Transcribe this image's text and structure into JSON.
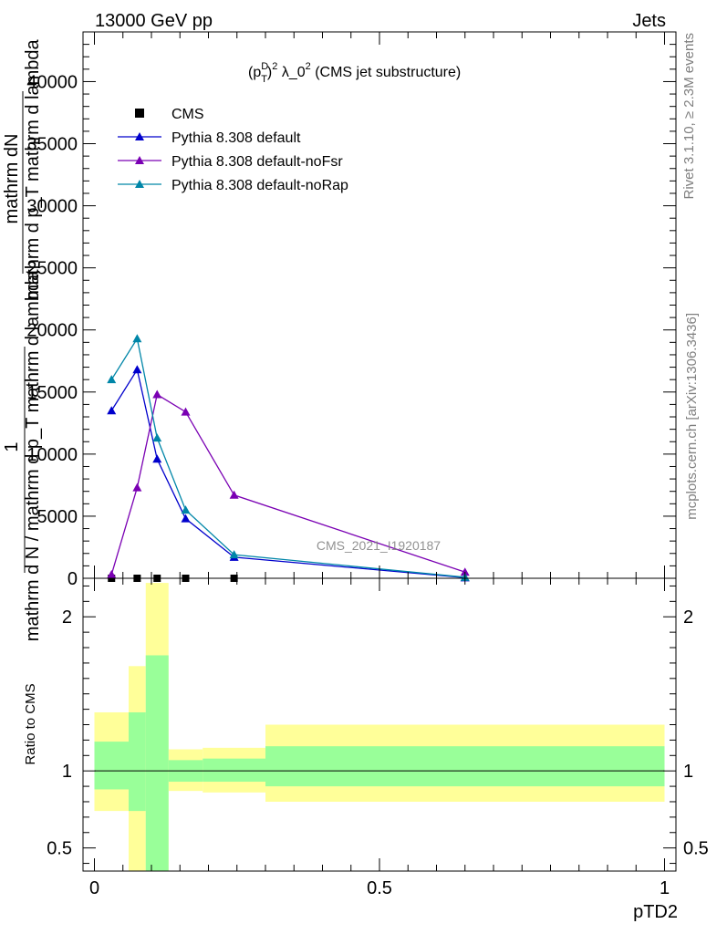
{
  "header": {
    "left": "13000 GeV pp",
    "right": "Jets"
  },
  "side": {
    "rivet": "Rivet 3.1.10, ≥ 2.3M events",
    "mcplots": "mcplots.cern.ch [arXiv:1306.3436]"
  },
  "main_plot": {
    "title_prefix": "(p",
    "title_sup_D": "D",
    "title_sub_T": "T",
    "title_sup_2": "2",
    "title_mid": " λ_0",
    "title_sup_2b": "2",
    "title_suffix": " (CMS jet substructure)",
    "watermark": "CMS_2021_I1920187",
    "ylabel_one": "1",
    "ylabel_num": "mathrm dN",
    "ylabel_num2": "mathrm d p_T mathrm d lambda",
    "ylabel_den": "mathrm d N / mathrm d p_T mathrm d lambda"
  },
  "legend": [
    {
      "label": "CMS",
      "color": "#000000",
      "marker": "square"
    },
    {
      "label": "Pythia 8.308 default",
      "color": "#0000cc",
      "marker": "triangle"
    },
    {
      "label": "Pythia 8.308 default-noFsr",
      "color": "#7a00b3",
      "marker": "triangle"
    },
    {
      "label": "Pythia 8.308 default-noRap",
      "color": "#0086a8",
      "marker": "triangle"
    }
  ],
  "ratio_plot": {
    "ylabel": "Ratio to CMS"
  },
  "xaxis": {
    "label": "pTD2"
  },
  "chart_data": [
    {
      "type": "line",
      "xlim": [
        -0.02,
        1.02
      ],
      "ylim": [
        0,
        44000
      ],
      "yticks": [
        0,
        5000,
        10000,
        15000,
        20000,
        25000,
        30000,
        35000,
        40000
      ],
      "ytick_labels": [
        "0",
        "5000",
        "10000",
        "15000",
        "20000",
        "25000",
        "30000",
        "35000",
        "40000"
      ],
      "series": [
        {
          "name": "CMS",
          "color": "#000000",
          "marker": "square",
          "x": [
            0.03,
            0.075,
            0.11,
            0.16,
            0.245
          ],
          "y": [
            0,
            0,
            0,
            0,
            0
          ]
        },
        {
          "name": "Pythia 8.308 default",
          "color": "#0000cc",
          "marker": "triangle",
          "x": [
            0.03,
            0.075,
            0.11,
            0.16,
            0.245,
            0.65
          ],
          "y": [
            13500,
            16800,
            9600,
            4800,
            1700,
            50
          ]
        },
        {
          "name": "Pythia 8.308 default-noFsr",
          "color": "#7a00b3",
          "marker": "triangle",
          "x": [
            0.03,
            0.075,
            0.11,
            0.16,
            0.245,
            0.65
          ],
          "y": [
            300,
            7300,
            14800,
            13400,
            6700,
            500
          ]
        },
        {
          "name": "Pythia 8.308 default-noRap",
          "color": "#0086a8",
          "marker": "triangle",
          "x": [
            0.03,
            0.075,
            0.11,
            0.16,
            0.245,
            0.65
          ],
          "y": [
            16000,
            19300,
            11300,
            5500,
            1900,
            80
          ]
        }
      ]
    },
    {
      "type": "area",
      "xlim": [
        -0.02,
        1.02
      ],
      "ylim": [
        0.35,
        2.25
      ],
      "yticks": [
        0.5,
        1,
        2
      ],
      "ytick_labels": [
        "0.5",
        "1",
        "2"
      ],
      "xticks": [
        0,
        0.5,
        1
      ],
      "xtick_labels": [
        "0",
        "0.5",
        "1"
      ],
      "bins": [
        {
          "x0": 0.0,
          "x1": 0.06,
          "yellow": [
            0.74,
            1.38
          ],
          "green": [
            0.88,
            1.19
          ]
        },
        {
          "x0": 0.06,
          "x1": 0.09,
          "yellow": [
            0.35,
            1.68
          ],
          "green": [
            0.74,
            1.38
          ]
        },
        {
          "x0": 0.09,
          "x1": 0.13,
          "yellow": [
            0.35,
            2.22
          ],
          "green": [
            0.35,
            1.75
          ]
        },
        {
          "x0": 0.13,
          "x1": 0.19,
          "yellow": [
            0.87,
            1.14
          ],
          "green": [
            0.93,
            1.07
          ]
        },
        {
          "x0": 0.19,
          "x1": 0.3,
          "yellow": [
            0.86,
            1.15
          ],
          "green": [
            0.93,
            1.08
          ]
        },
        {
          "x0": 0.3,
          "x1": 1.0,
          "yellow": [
            0.8,
            1.3
          ],
          "green": [
            0.9,
            1.16
          ]
        }
      ]
    }
  ]
}
